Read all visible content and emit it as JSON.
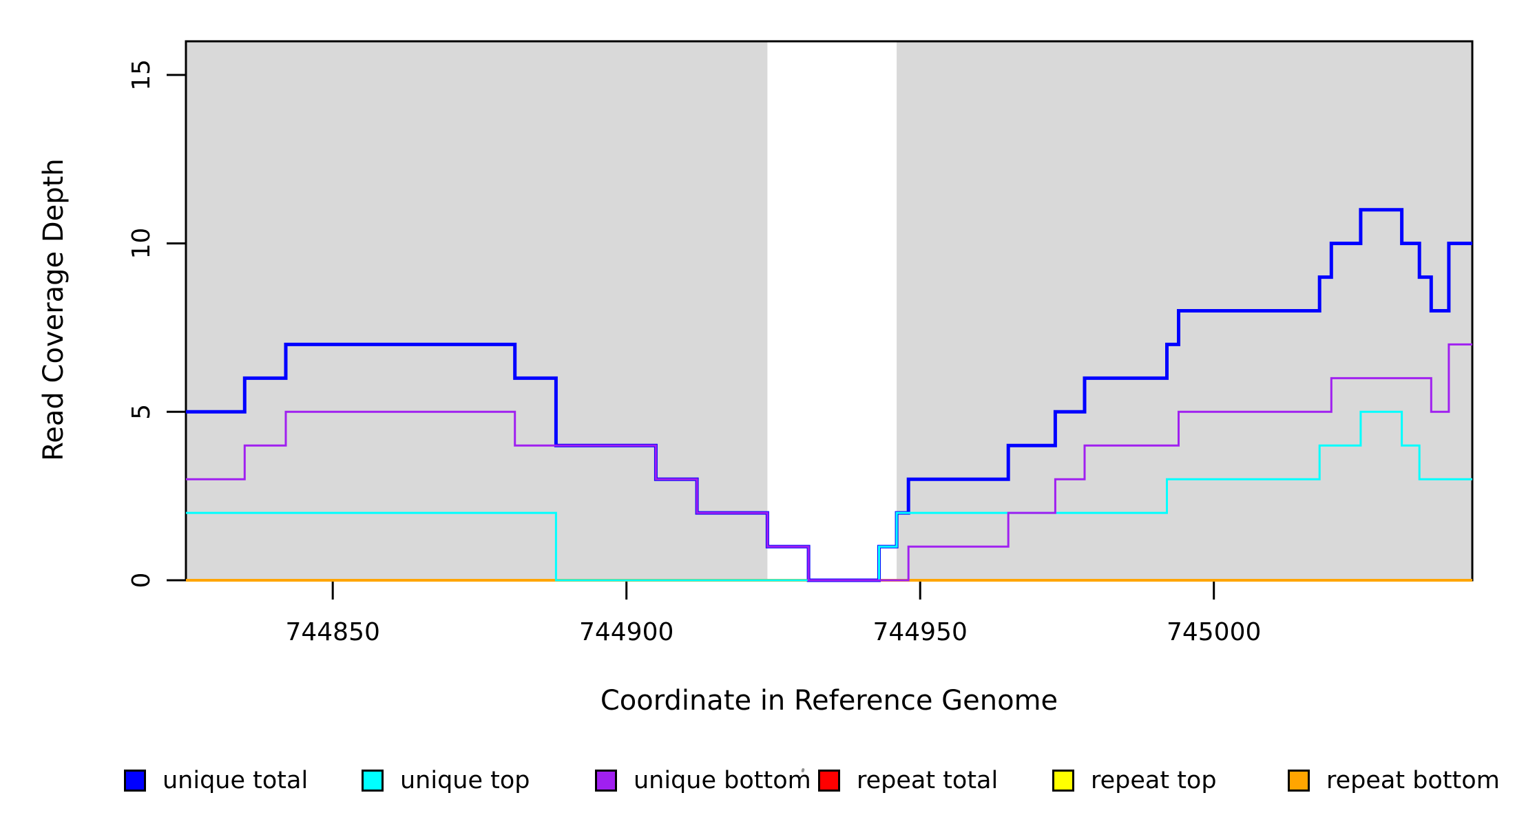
{
  "window": {
    "background": "#ffffff"
  },
  "chart_data": {
    "type": "line",
    "line_style": "step",
    "title": "",
    "xlabel": "Coordinate in Reference Genome",
    "ylabel": "Read Coverage Depth",
    "xlim": [
      744825,
      745044
    ],
    "ylim": [
      0,
      16
    ],
    "x_ticks": [
      744850,
      744900,
      744950,
      745000
    ],
    "y_ticks": [
      0,
      5,
      10,
      15
    ],
    "grid": false,
    "legend_position": "bottom",
    "axis_color": "#000000",
    "tick_label_font_px": 36,
    "shaded_regions": [
      {
        "x0": 744825,
        "x1": 744924,
        "color": "#d9d9d9"
      },
      {
        "x0": 744946,
        "x1": 745044,
        "color": "#d9d9d9"
      }
    ],
    "series": [
      {
        "name": "repeat total",
        "color": "#ff0000",
        "line_width": 3,
        "points": [
          [
            744825,
            0
          ],
          [
            745044,
            0
          ]
        ]
      },
      {
        "name": "repeat top",
        "color": "#ffff00",
        "line_width": 3,
        "points": [
          [
            744825,
            0
          ],
          [
            745044,
            0
          ]
        ]
      },
      {
        "name": "repeat bottom",
        "color": "#ffa500",
        "line_width": 4,
        "points": [
          [
            744825,
            0
          ],
          [
            745044,
            0
          ]
        ]
      },
      {
        "name": "unique total",
        "color": "#0000ff",
        "line_width": 5,
        "points": [
          [
            744825,
            5
          ],
          [
            744835,
            6
          ],
          [
            744842,
            7
          ],
          [
            744881,
            6
          ],
          [
            744888,
            4
          ],
          [
            744905,
            3
          ],
          [
            744912,
            2
          ],
          [
            744924,
            1
          ],
          [
            744931,
            0
          ],
          [
            744943,
            1
          ],
          [
            744946,
            2
          ],
          [
            744948,
            3
          ],
          [
            744965,
            4
          ],
          [
            744973,
            5
          ],
          [
            744978,
            6
          ],
          [
            744992,
            7
          ],
          [
            744994,
            8
          ],
          [
            745018,
            9
          ],
          [
            745020,
            10
          ],
          [
            745025,
            11
          ],
          [
            745032,
            10
          ],
          [
            745035,
            9
          ],
          [
            745037,
            8
          ],
          [
            745040,
            10
          ],
          [
            745044,
            10
          ]
        ]
      },
      {
        "name": "unique top",
        "color": "#00ffff",
        "line_width": 3,
        "points": [
          [
            744825,
            2
          ],
          [
            744888,
            0
          ],
          [
            744943,
            1
          ],
          [
            744946,
            2
          ],
          [
            744992,
            3
          ],
          [
            745018,
            4
          ],
          [
            745025,
            5
          ],
          [
            745032,
            4
          ],
          [
            745035,
            3
          ],
          [
            745044,
            3
          ]
        ]
      },
      {
        "name": "unique bottom",
        "color": "#a020f0",
        "line_width": 3,
        "points": [
          [
            744825,
            3
          ],
          [
            744835,
            4
          ],
          [
            744842,
            5
          ],
          [
            744881,
            4
          ],
          [
            744905,
            3
          ],
          [
            744912,
            2
          ],
          [
            744924,
            1
          ],
          [
            744931,
            0
          ],
          [
            744948,
            1
          ],
          [
            744965,
            2
          ],
          [
            744973,
            3
          ],
          [
            744978,
            4
          ],
          [
            744994,
            5
          ],
          [
            745020,
            6
          ],
          [
            745037,
            5
          ],
          [
            745040,
            7
          ],
          [
            745044,
            7
          ]
        ]
      }
    ]
  },
  "legend": {
    "items": [
      {
        "label": "unique total",
        "color": "#0000ff"
      },
      {
        "label": "unique top",
        "color": "#00ffff"
      },
      {
        "label": "unique bottom",
        "color": "#a020f0"
      },
      {
        "label": "repeat total",
        "color": "#ff0000"
      },
      {
        "label": "repeat top",
        "color": "#ffff00"
      },
      {
        "label": "repeat bottom",
        "color": "#ffa500"
      }
    ]
  }
}
